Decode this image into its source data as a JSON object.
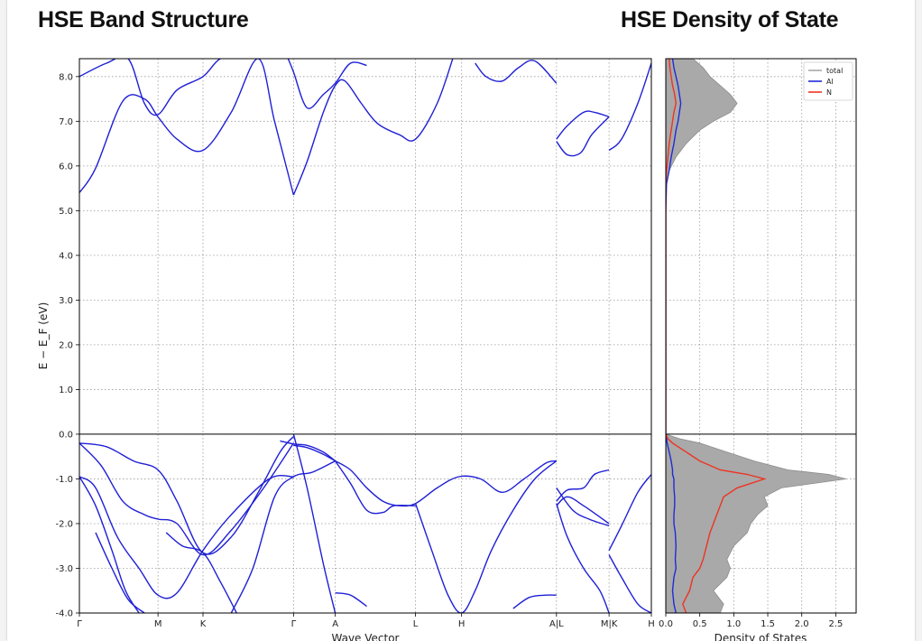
{
  "titles": {
    "band": "HSE Band Structure",
    "dos": "HSE Density of State"
  },
  "colors": {
    "band_line": "#1f1fd6",
    "total": "#a9a9a9",
    "al": "#1f2bd6",
    "n": "#ee3322",
    "grid": "#9a9a9a",
    "fermi": "#000000"
  },
  "chart_data": [
    {
      "type": "line",
      "title": "HSE Band Structure",
      "xlabel": "Wave Vector",
      "ylabel": "E − E_F (eV)",
      "ylim": [
        -4.0,
        8.4
      ],
      "xlim": [
        0,
        10.55
      ],
      "grid": true,
      "yticks": [
        -4.0,
        -3.0,
        -2.0,
        -1.0,
        0.0,
        1.0,
        2.0,
        3.0,
        4.0,
        5.0,
        6.0,
        7.0,
        8.0
      ],
      "kpoints": [
        {
          "label": "Γ",
          "x": 0.0
        },
        {
          "label": "M",
          "x": 1.45
        },
        {
          "label": "K",
          "x": 2.28
        },
        {
          "label": "Γ",
          "x": 3.95
        },
        {
          "label": "A",
          "x": 4.72
        },
        {
          "label": "L",
          "x": 6.2
        },
        {
          "label": "H",
          "x": 7.05
        },
        {
          "label": "A|L",
          "x": 8.8
        },
        {
          "label": "M|K",
          "x": 9.77
        },
        {
          "label": "H",
          "x": 10.55
        }
      ],
      "bands": [
        {
          "x": [
            0.0,
            0.3,
            0.8,
            1.2,
            1.45,
            1.8,
            2.28,
            2.8,
            3.3,
            3.6,
            3.95
          ],
          "y": [
            5.4,
            5.95,
            7.45,
            7.5,
            7.1,
            6.6,
            6.35,
            7.2,
            8.4,
            7.0,
            5.35
          ]
        },
        {
          "x": [
            0.0,
            0.5,
            0.9,
            1.2,
            1.45,
            1.8,
            2.28,
            2.6,
            3.0
          ],
          "y": [
            8.0,
            8.3,
            8.4,
            7.4,
            7.15,
            7.7,
            8.0,
            8.4,
            8.45
          ]
        },
        {
          "x": [
            3.95,
            4.2,
            4.5,
            4.72,
            4.9,
            5.2,
            5.5,
            5.9,
            6.2,
            6.6,
            6.9
          ],
          "y": [
            5.35,
            6.1,
            7.2,
            7.8,
            7.9,
            7.4,
            6.95,
            6.7,
            6.6,
            7.4,
            8.45
          ]
        },
        {
          "x": [
            3.85,
            3.95,
            4.2,
            4.5,
            4.72,
            5.0,
            5.3
          ],
          "y": [
            8.4,
            8.1,
            7.3,
            7.6,
            7.85,
            8.3,
            8.25
          ]
        },
        {
          "x": [
            7.3,
            7.5,
            7.8,
            8.1,
            8.4,
            8.8
          ],
          "y": [
            8.3,
            8.0,
            7.9,
            8.2,
            8.35,
            7.85
          ]
        },
        {
          "x": [
            8.8,
            9.0,
            9.3,
            9.5,
            9.77
          ],
          "y": [
            6.6,
            6.9,
            7.2,
            7.2,
            7.1
          ]
        },
        {
          "x": [
            8.8,
            9.0,
            9.25,
            9.45,
            9.77
          ],
          "y": [
            6.55,
            6.25,
            6.3,
            6.7,
            7.1
          ]
        },
        {
          "x": [
            9.77,
            10.0,
            10.3,
            10.55
          ],
          "y": [
            6.35,
            6.6,
            7.4,
            8.3
          ]
        },
        {
          "x": [
            0.0,
            0.5,
            1.0,
            1.45,
            1.8,
            2.28,
            2.8,
            3.3,
            3.7,
            3.95
          ],
          "y": [
            -0.2,
            -0.28,
            -0.6,
            -0.8,
            -1.5,
            -2.65,
            -2.3,
            -1.3,
            -0.4,
            -0.05
          ]
        },
        {
          "x": [
            0.0,
            0.4,
            0.8,
            1.2,
            1.45,
            1.8,
            2.28,
            2.8,
            3.4,
            3.95
          ],
          "y": [
            -0.2,
            -0.7,
            -1.5,
            -1.8,
            -1.9,
            -2.0,
            -2.7,
            -2.15,
            -1.2,
            -0.2
          ]
        },
        {
          "x": [
            0.0,
            0.3,
            0.7,
            1.1,
            1.45,
            1.8,
            2.28,
            2.8,
            3.5,
            3.95
          ],
          "y": [
            -0.95,
            -1.2,
            -2.3,
            -3.0,
            -3.6,
            -3.55,
            -2.6,
            -1.8,
            -1.0,
            -0.95
          ]
        },
        {
          "x": [
            0.0,
            0.3,
            0.6,
            0.85,
            1.1
          ],
          "y": [
            -0.95,
            -1.6,
            -2.6,
            -3.5,
            -4.0
          ]
        },
        {
          "x": [
            0.3,
            0.6,
            0.9,
            1.2
          ],
          "y": [
            -2.2,
            -3.0,
            -3.7,
            -4.0
          ]
        },
        {
          "x": [
            1.6,
            1.9,
            2.28,
            2.6,
            2.9
          ],
          "y": [
            -2.2,
            -2.5,
            -2.65,
            -3.3,
            -4.0
          ]
        },
        {
          "x": [
            2.8,
            3.2,
            3.6,
            3.95,
            4.3,
            4.72
          ],
          "y": [
            -4.0,
            -3.0,
            -1.4,
            -0.95,
            -0.85,
            -0.6
          ]
        },
        {
          "x": [
            3.95,
            4.2,
            4.5,
            4.72
          ],
          "y": [
            -0.25,
            -0.3,
            -0.45,
            -0.6
          ]
        },
        {
          "x": [
            3.7,
            3.95,
            4.2,
            4.5,
            4.72
          ],
          "y": [
            -0.15,
            -0.22,
            -0.25,
            -0.4,
            -0.6
          ]
        },
        {
          "x": [
            3.95,
            4.2,
            4.5,
            4.72
          ],
          "y": [
            0.0,
            -1.2,
            -2.9,
            -4.0
          ]
        },
        {
          "x": [
            4.72,
            5.0,
            5.3,
            5.6,
            5.9,
            6.2,
            6.6,
            7.0,
            7.4,
            7.8,
            8.2,
            8.6,
            8.8
          ],
          "y": [
            -0.6,
            -0.8,
            -1.2,
            -1.5,
            -1.6,
            -1.55,
            -1.2,
            -0.95,
            -1.0,
            -1.3,
            -1.0,
            -0.65,
            -0.6
          ]
        },
        {
          "x": [
            4.72,
            5.0,
            5.3,
            5.6,
            5.8,
            6.2
          ],
          "y": [
            -0.6,
            -1.1,
            -1.7,
            -1.75,
            -1.6,
            -1.6
          ]
        },
        {
          "x": [
            6.2,
            6.5,
            6.8,
            7.05,
            7.3,
            7.6,
            8.0,
            8.4,
            8.8
          ],
          "y": [
            -1.55,
            -2.6,
            -3.6,
            -4.0,
            -3.5,
            -2.6,
            -1.7,
            -1.0,
            -0.6
          ]
        },
        {
          "x": [
            4.72,
            5.0,
            5.3
          ],
          "y": [
            -3.55,
            -3.6,
            -3.85
          ]
        },
        {
          "x": [
            8.0,
            8.3,
            8.6,
            8.8
          ],
          "y": [
            -3.9,
            -3.65,
            -3.6,
            -3.6
          ]
        },
        {
          "x": [
            8.8,
            9.0,
            9.3,
            9.6,
            9.77
          ],
          "y": [
            -1.55,
            -2.3,
            -3.0,
            -3.5,
            -4.0
          ]
        },
        {
          "x": [
            8.8,
            9.1,
            9.4,
            9.77
          ],
          "y": [
            -1.2,
            -1.7,
            -1.9,
            -2.05
          ]
        },
        {
          "x": [
            8.8,
            9.0,
            9.3,
            9.5,
            9.77
          ],
          "y": [
            -1.5,
            -1.25,
            -1.2,
            -0.9,
            -0.8
          ]
        },
        {
          "x": [
            8.8,
            9.0,
            9.3,
            9.77
          ],
          "y": [
            -1.6,
            -1.4,
            -1.6,
            -2.0
          ]
        },
        {
          "x": [
            9.77,
            10.0,
            10.3,
            10.55
          ],
          "y": [
            -2.6,
            -2.05,
            -1.3,
            -0.9
          ]
        },
        {
          "x": [
            9.77,
            10.0,
            10.3,
            10.55
          ],
          "y": [
            -2.7,
            -3.2,
            -3.8,
            -4.0
          ]
        }
      ]
    },
    {
      "type": "area",
      "title": "HSE Density of State",
      "xlabel": "Density of States",
      "ylim": [
        -4.0,
        8.4
      ],
      "xlim": [
        0.0,
        2.8
      ],
      "xticks": [
        0.0,
        0.5,
        1.0,
        1.5,
        2.0,
        2.5
      ],
      "grid": true,
      "legend_position": "top-right",
      "energy": [
        -4.0,
        -3.8,
        -3.5,
        -3.2,
        -3.0,
        -2.8,
        -2.5,
        -2.2,
        -2.0,
        -1.8,
        -1.6,
        -1.4,
        -1.2,
        -1.0,
        -0.9,
        -0.8,
        -0.6,
        -0.4,
        -0.2,
        -0.1,
        0.0,
        4.0,
        5.0,
        5.6,
        5.9,
        6.2,
        6.5,
        6.8,
        7.0,
        7.2,
        7.4,
        7.6,
        7.8,
        8.0,
        8.2,
        8.4
      ],
      "series": [
        {
          "name": "total",
          "values": [
            0.8,
            0.85,
            0.7,
            0.9,
            0.95,
            0.9,
            1.0,
            1.2,
            1.25,
            1.35,
            1.5,
            1.45,
            1.7,
            2.65,
            2.4,
            1.8,
            1.3,
            0.9,
            0.5,
            0.2,
            0.0,
            0.0,
            0.0,
            0.01,
            0.05,
            0.15,
            0.3,
            0.5,
            0.7,
            0.95,
            1.05,
            0.95,
            0.8,
            0.65,
            0.55,
            0.4
          ]
        },
        {
          "name": "Al",
          "values": [
            0.15,
            0.12,
            0.1,
            0.12,
            0.15,
            0.14,
            0.15,
            0.14,
            0.12,
            0.12,
            0.13,
            0.13,
            0.12,
            0.12,
            0.1,
            0.1,
            0.08,
            0.05,
            0.02,
            0.01,
            0.0,
            0.0,
            0.0,
            0.01,
            0.05,
            0.08,
            0.12,
            0.15,
            0.18,
            0.2,
            0.22,
            0.2,
            0.18,
            0.15,
            0.12,
            0.1
          ]
        },
        {
          "name": "N",
          "values": [
            0.3,
            0.25,
            0.35,
            0.4,
            0.5,
            0.55,
            0.6,
            0.65,
            0.7,
            0.75,
            0.8,
            0.85,
            1.05,
            1.45,
            1.2,
            0.8,
            0.5,
            0.3,
            0.1,
            0.03,
            0.0,
            0.0,
            0.0,
            0.0,
            0.01,
            0.03,
            0.05,
            0.08,
            0.1,
            0.12,
            0.15,
            0.13,
            0.1,
            0.08,
            0.06,
            0.05
          ]
        }
      ]
    }
  ]
}
